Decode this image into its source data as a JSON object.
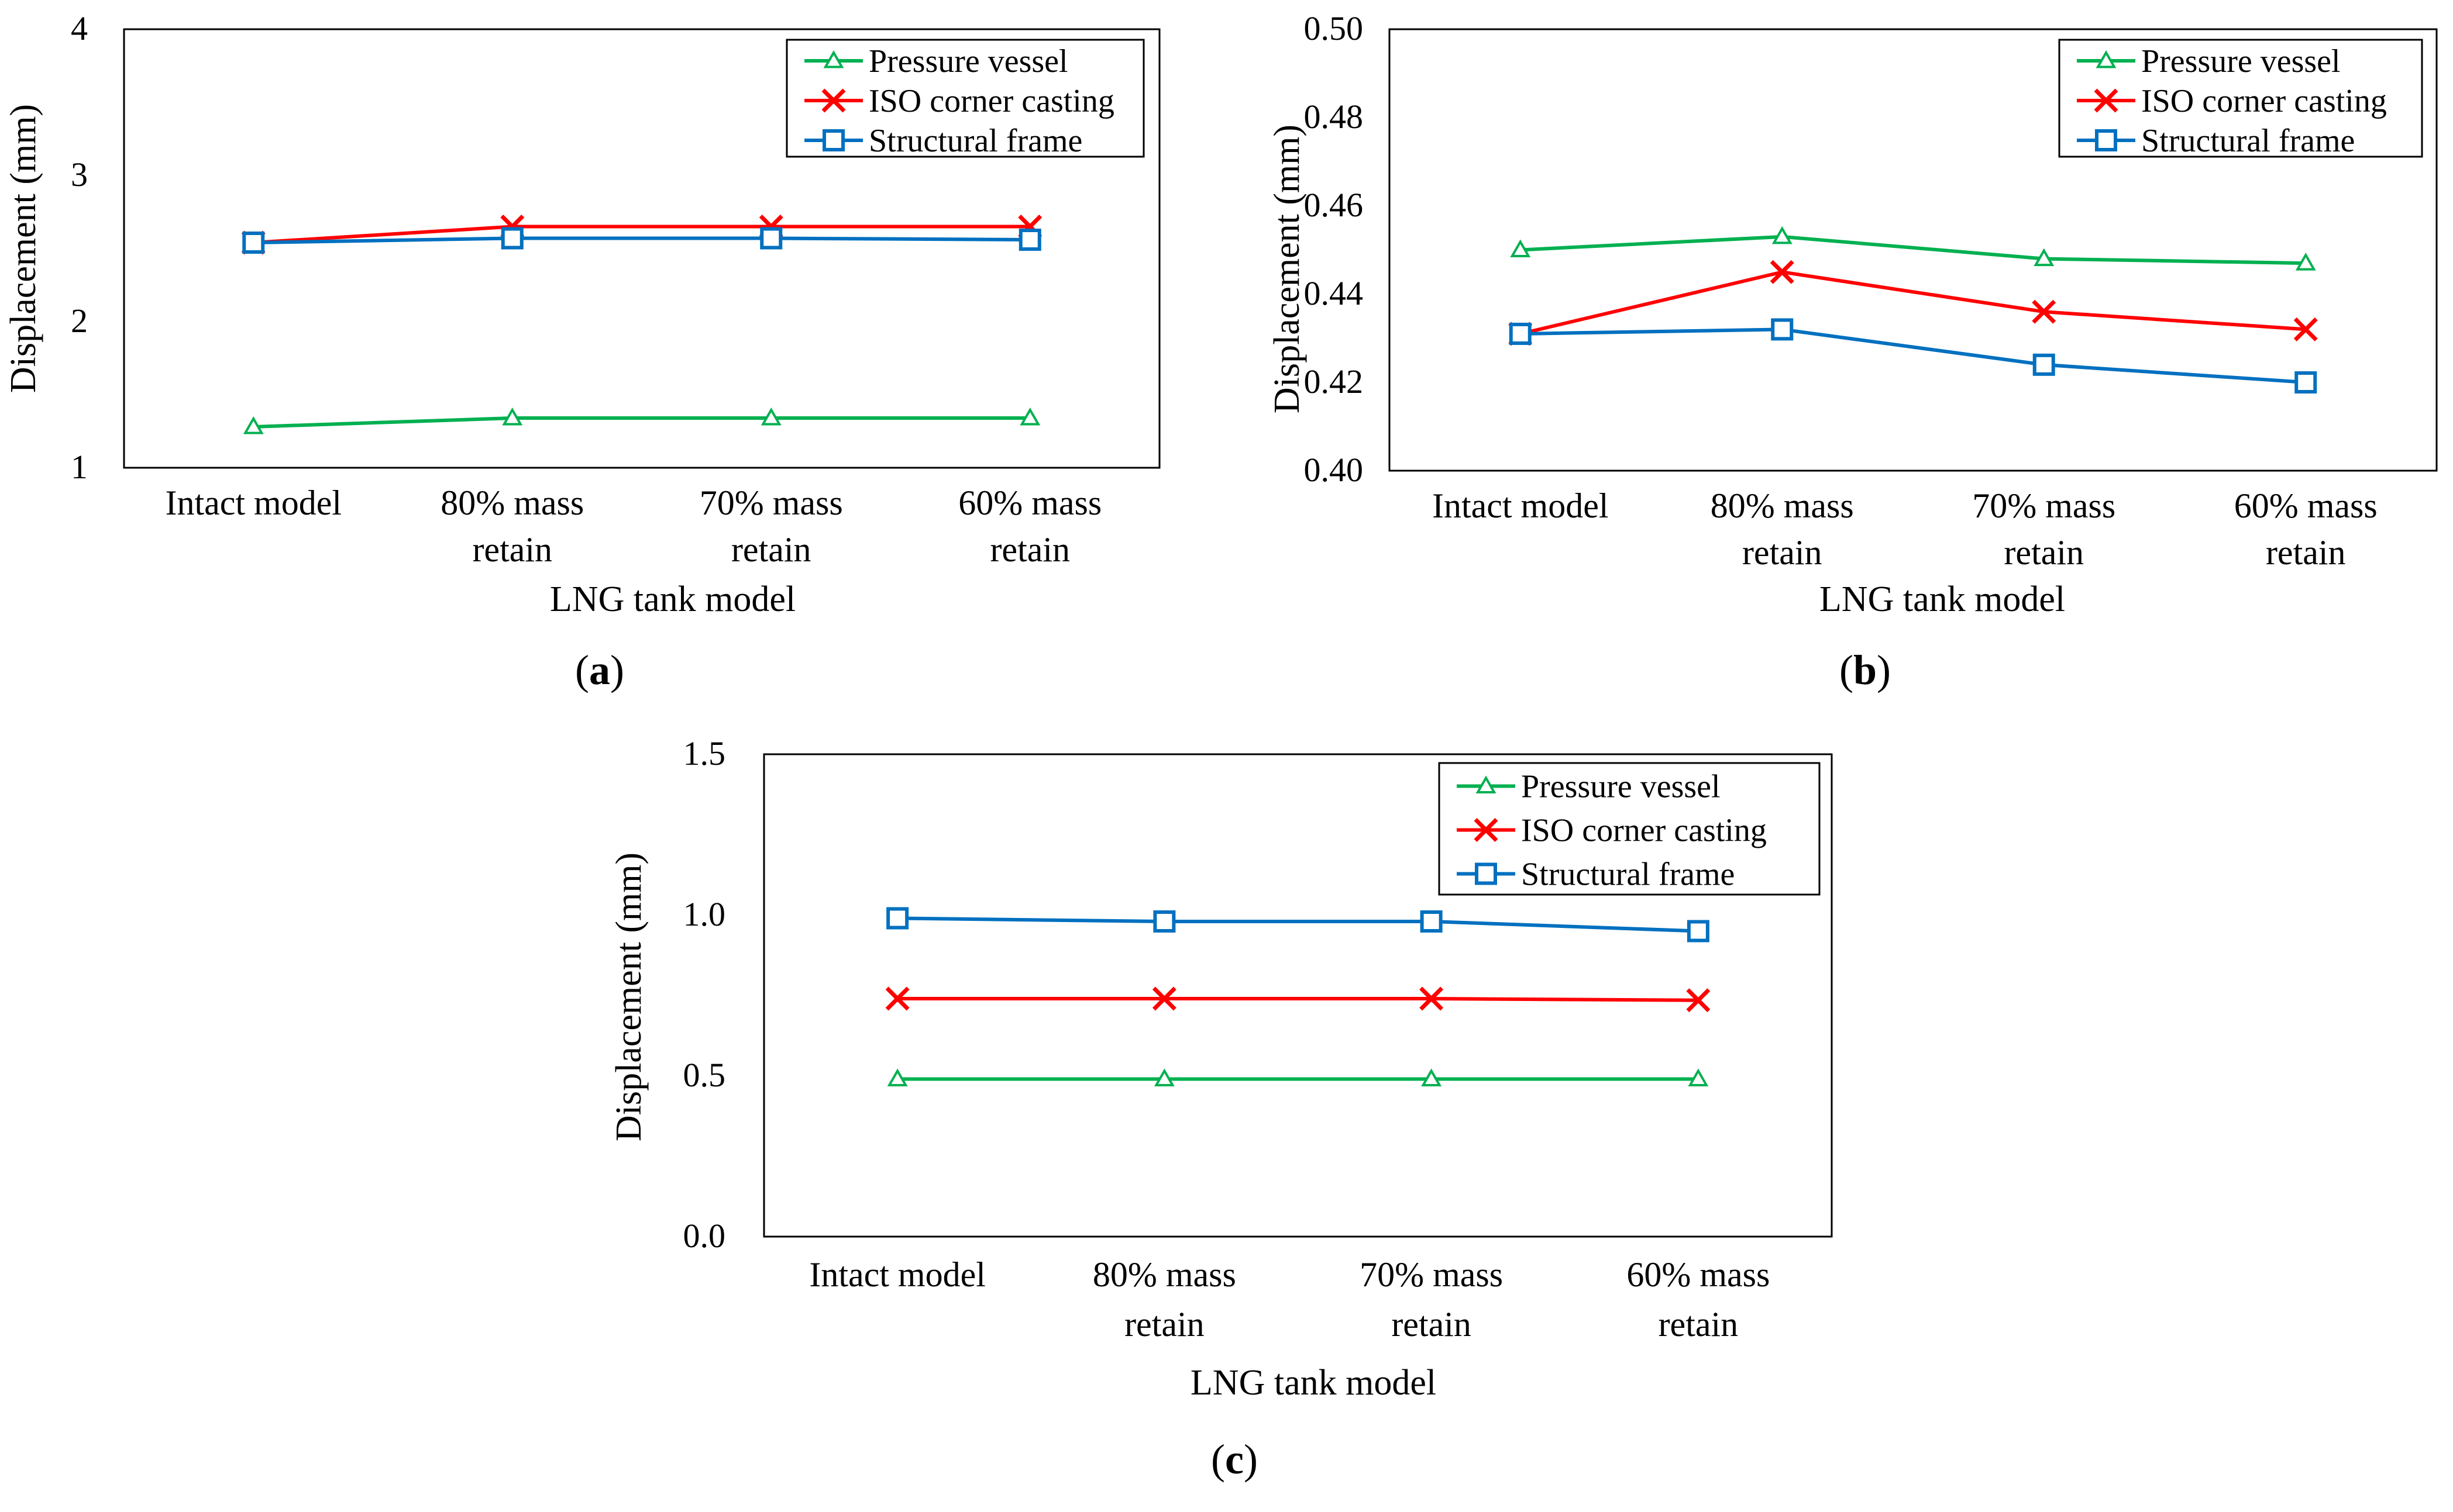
{
  "chart_data": [
    {
      "type": "line",
      "panel_label": "a",
      "categories": [
        [
          "Intact model"
        ],
        [
          "80% mass",
          "retain"
        ],
        [
          "70% mass",
          "retain"
        ],
        [
          "60% mass",
          "retain"
        ]
      ],
      "xlabel": "LNG tank model",
      "ylabel": "Displacement  (mm)",
      "ylim": [
        1,
        4
      ],
      "yticks": [
        1,
        2,
        3,
        4
      ],
      "ytick_labels": [
        "1",
        "2",
        "3",
        "4"
      ],
      "legend_position": "top-right",
      "series": [
        {
          "name": "Pressure vessel",
          "color": "#00b050",
          "marker": "triangle",
          "values": [
            1.28,
            1.34,
            1.34,
            1.34
          ]
        },
        {
          "name": "ISO corner casting",
          "color": "#ff0000",
          "marker": "x",
          "values": [
            2.54,
            2.65,
            2.65,
            2.65
          ]
        },
        {
          "name": "Structural frame",
          "color": "#0070c0",
          "marker": "square",
          "values": [
            2.54,
            2.57,
            2.57,
            2.56
          ]
        }
      ]
    },
    {
      "type": "line",
      "panel_label": "b",
      "categories": [
        [
          "Intact model"
        ],
        [
          "80% mass",
          "retain"
        ],
        [
          "70% mass",
          "retain"
        ],
        [
          "60% mass",
          "retain"
        ]
      ],
      "xlabel": "LNG tank model",
      "ylabel": "Displacement  (mm)",
      "ylim": [
        0.4,
        0.5
      ],
      "yticks": [
        0.4,
        0.42,
        0.44,
        0.46,
        0.48,
        0.5
      ],
      "ytick_labels": [
        "0.40",
        "0.42",
        "0.44",
        "0.46",
        "0.48",
        "0.50"
      ],
      "legend_position": "top-right",
      "series": [
        {
          "name": "Pressure vessel",
          "color": "#00b050",
          "marker": "triangle",
          "values": [
            0.45,
            0.453,
            0.448,
            0.447
          ]
        },
        {
          "name": "ISO corner casting",
          "color": "#ff0000",
          "marker": "x",
          "values": [
            0.431,
            0.445,
            0.436,
            0.432
          ]
        },
        {
          "name": "Structural frame",
          "color": "#0070c0",
          "marker": "square",
          "values": [
            0.431,
            0.432,
            0.424,
            0.42
          ]
        }
      ]
    },
    {
      "type": "line",
      "panel_label": "c",
      "categories": [
        [
          "Intact model"
        ],
        [
          "80% mass",
          "retain"
        ],
        [
          "70% mass",
          "retain"
        ],
        [
          "60% mass",
          "retain"
        ]
      ],
      "xlabel": "LNG tank model",
      "ylabel": "Displacement  (mm)",
      "ylim": [
        0.0,
        1.5
      ],
      "yticks": [
        0.0,
        0.5,
        1.0,
        1.5
      ],
      "ytick_labels": [
        "0.0",
        "0.5",
        "1.0",
        "1.5"
      ],
      "legend_position": "top-right",
      "series": [
        {
          "name": "Pressure vessel",
          "color": "#00b050",
          "marker": "triangle",
          "values": [
            0.49,
            0.49,
            0.49,
            0.49
          ]
        },
        {
          "name": "ISO corner casting",
          "color": "#ff0000",
          "marker": "x",
          "values": [
            0.74,
            0.74,
            0.74,
            0.735
          ]
        },
        {
          "name": "Structural frame",
          "color": "#0070c0",
          "marker": "square",
          "values": [
            0.99,
            0.98,
            0.98,
            0.95
          ]
        }
      ]
    }
  ]
}
